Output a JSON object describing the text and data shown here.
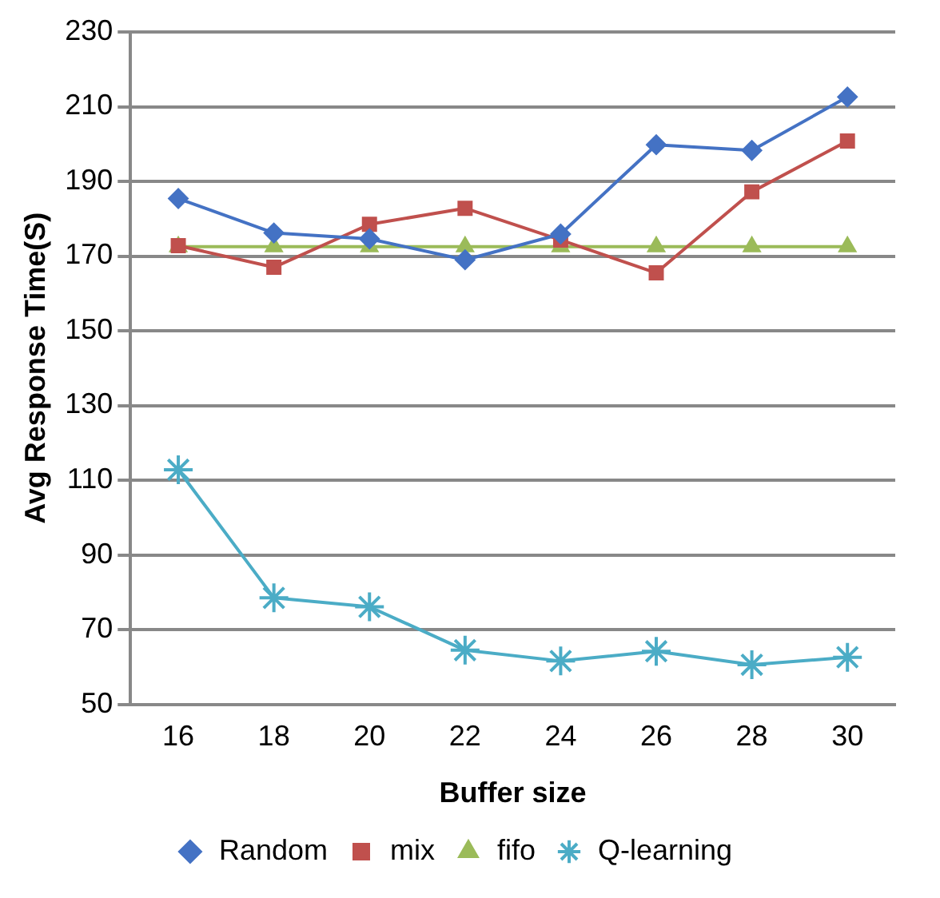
{
  "chart_data": {
    "type": "line",
    "xlabel": "Buffer size",
    "ylabel": "Avg Response Time(S)",
    "categories": [
      "16",
      "18",
      "20",
      "22",
      "24",
      "26",
      "28",
      "30"
    ],
    "ylim": [
      50,
      230
    ],
    "yticks": [
      50,
      70,
      90,
      110,
      130,
      150,
      170,
      190,
      210,
      230
    ],
    "grid": "y",
    "legend": "bottom",
    "series": [
      {
        "name": "Random",
        "color": "#4472c4",
        "marker": "diamond",
        "values": [
          185.4,
          176.2,
          174.6,
          169,
          175.9,
          199.8,
          198.3,
          212.6
        ]
      },
      {
        "name": "mix",
        "color": "#c0504d",
        "marker": "square",
        "values": [
          172.8,
          167,
          178.5,
          182.8,
          174.3,
          165.5,
          187.2,
          200.8
        ]
      },
      {
        "name": "fifo",
        "color": "#9bbb59",
        "marker": "triangle",
        "values": [
          172.5,
          172.5,
          172.5,
          172.5,
          172.5,
          172.5,
          172.5,
          172.5
        ]
      },
      {
        "name": "Q-learning",
        "color": "#4bacc6",
        "marker": "cross",
        "values": [
          112.8,
          78.5,
          76.1,
          64.5,
          61.6,
          64.2,
          60.6,
          62.6
        ]
      }
    ]
  }
}
